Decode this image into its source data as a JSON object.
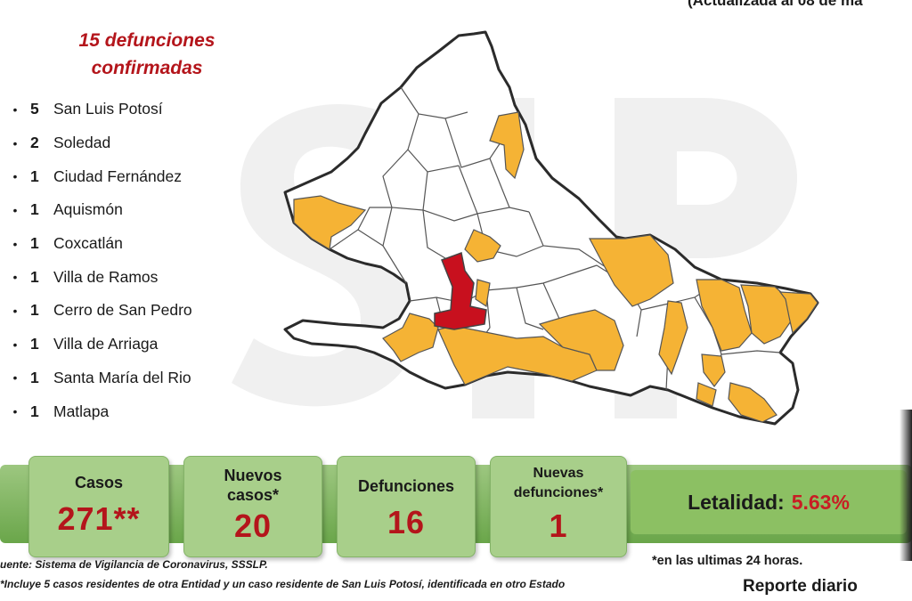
{
  "header": {
    "top_note": "(Actualizada al 08 de ma"
  },
  "title": {
    "line1": "15 defunciones",
    "line2": "confirmadas"
  },
  "deaths": [
    {
      "count": "5",
      "municipality": "San Luis Potosí"
    },
    {
      "count": "2",
      "municipality": "Soledad"
    },
    {
      "count": "1",
      "municipality": "Ciudad Fernández"
    },
    {
      "count": "1",
      "municipality": "Aquismón"
    },
    {
      "count": "1",
      "municipality": "Coxcatlán"
    },
    {
      "count": "1",
      "municipality": "Villa de Ramos"
    },
    {
      "count": "1",
      "municipality": "Cerro de San Pedro"
    },
    {
      "count": "1",
      "municipality": "Villa de Arriaga"
    },
    {
      "count": "1",
      "municipality": "Santa María del Rio"
    },
    {
      "count": "1",
      "municipality": "Matlapa"
    }
  ],
  "stats": {
    "casos": {
      "label": "Casos",
      "value": "271**"
    },
    "nuevos_casos": {
      "label_line1": "Nuevos",
      "label_line2": "casos*",
      "value": "20"
    },
    "defunciones": {
      "label": "Defunciones",
      "value": "16"
    },
    "nuevas_defunciones": {
      "label_line1": "Nuevas",
      "label_line2": "defunciones*",
      "value": "1"
    },
    "letalidad": {
      "label": "Letalidad:",
      "value": "5.63%"
    }
  },
  "footer": {
    "source": "uente: Sistema de Vigilancia de Coronavirus, SSSLP.",
    "note": "*Incluye 5 casos residentes de otra Entidad y un caso residente de San Luis Potosí, identificada en otro Estado",
    "last24": "*en las ultimas 24 horas.",
    "report": "Reporte diario"
  },
  "colors": {
    "title_red": "#b4151b",
    "value_red": "#c81e24",
    "map_orange": "#f5b335",
    "map_red": "#c8101e",
    "band_green": "#6aa64a",
    "card_green": "#a8cf8a"
  }
}
